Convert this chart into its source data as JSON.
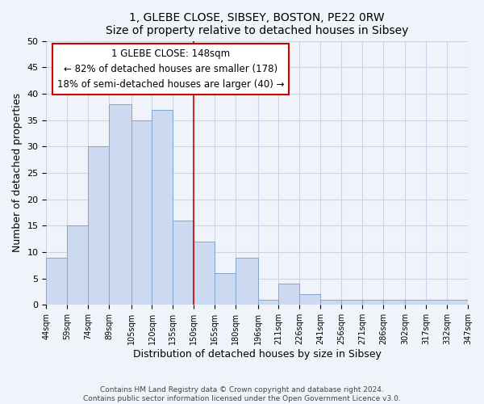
{
  "title": "1, GLEBE CLOSE, SIBSEY, BOSTON, PE22 0RW",
  "subtitle": "Size of property relative to detached houses in Sibsey",
  "xlabel": "Distribution of detached houses by size in Sibsey",
  "ylabel": "Number of detached properties",
  "bar_values": [
    9,
    15,
    30,
    38,
    35,
    37,
    16,
    12,
    6,
    9,
    1,
    4,
    2,
    1,
    1,
    1,
    1,
    1
  ],
  "bin_edges": [
    44,
    59,
    74,
    89,
    105,
    120,
    135,
    150,
    165,
    180,
    196,
    211,
    226,
    241,
    256,
    271,
    286,
    302,
    347
  ],
  "x_tick_labels": [
    "44sqm",
    "59sqm",
    "74sqm",
    "89sqm",
    "105sqm",
    "120sqm",
    "135sqm",
    "150sqm",
    "165sqm",
    "180sqm",
    "196sqm",
    "211sqm",
    "226sqm",
    "241sqm",
    "256sqm",
    "271sqm",
    "286sqm",
    "302sqm",
    "317sqm",
    "332sqm",
    "347sqm"
  ],
  "bar_color": "#ccd9f0",
  "bar_edge_color": "#7fa8d0",
  "vline_x": 150,
  "vline_color": "#cc0000",
  "ylim": [
    0,
    50
  ],
  "yticks": [
    0,
    5,
    10,
    15,
    20,
    25,
    30,
    35,
    40,
    45,
    50
  ],
  "annotation_title": "1 GLEBE CLOSE: 148sqm",
  "annotation_line1": "← 82% of detached houses are smaller (178)",
  "annotation_line2": "18% of semi-detached houses are larger (40) →",
  "footer_line1": "Contains HM Land Registry data © Crown copyright and database right 2024.",
  "footer_line2": "Contains public sector information licensed under the Open Government Licence v3.0.",
  "background_color": "#f0f4fa",
  "grid_color": "#c8d4e8"
}
